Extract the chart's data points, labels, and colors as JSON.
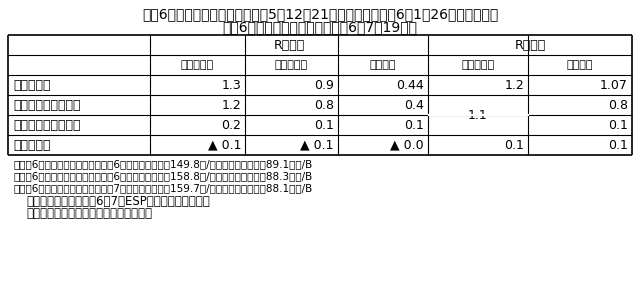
{
  "title_line1": "令和6年度政府経済見通し（令和5年12月21日閣議了解、令和6年1月26日閣議決定）",
  "title_line2": "令和6年度内閣府年央試算（令和6年7月19日）",
  "col_group_labels": [
    "R６年度",
    "R７年度"
  ],
  "col_sub_labels": [
    "政府見通し",
    "内閣府年央",
    "民間平均",
    "内閣府年央",
    "民間平均"
  ],
  "row_labels": [
    "実質ＧＤＰ",
    "内需（民需）寄与度",
    "内需（公需）寄与度",
    "外需寄与度"
  ],
  "data": [
    [
      "1.3",
      "0.9",
      "0.44",
      "1.2",
      "1.07"
    ],
    [
      "1.2",
      "0.8",
      "0.4",
      "1.1",
      "0.8"
    ],
    [
      "0.2",
      "0.1",
      "0.1",
      "",
      "0.1"
    ],
    [
      "▲ 0.1",
      "▲ 0.1",
      "▲ 0.0",
      "0.1",
      "0.1"
    ]
  ],
  "merged_cell_value": "1.1",
  "footnotes": [
    "＊令和6年度政府経済見通し：令和6年度前提：円相場149.8円/ドル、原油輸入価格89.1ドル/B",
    "＊令和6年度内閣府年央試算：令和6年度前提：円相場158.8円/ドル、原油輸入価格88.3ドル/B",
    "＊令和6年度内閣府年央試算：令和7年度前提：円相場159.7円/ドル、原油輸入価格88.1ドル/B",
    "（注）民間平均は令和6年7月ESPフォーキャスト調査",
    "（出所）内閣府、日本経済研究センター"
  ],
  "bg_color": "#ffffff",
  "text_color": "#000000",
  "border_color": "#000000",
  "title_fontsize": 10,
  "header_fontsize": 8,
  "data_fontsize": 9,
  "footnote_fontsize": 7.5,
  "note_fontsize": 8.5
}
